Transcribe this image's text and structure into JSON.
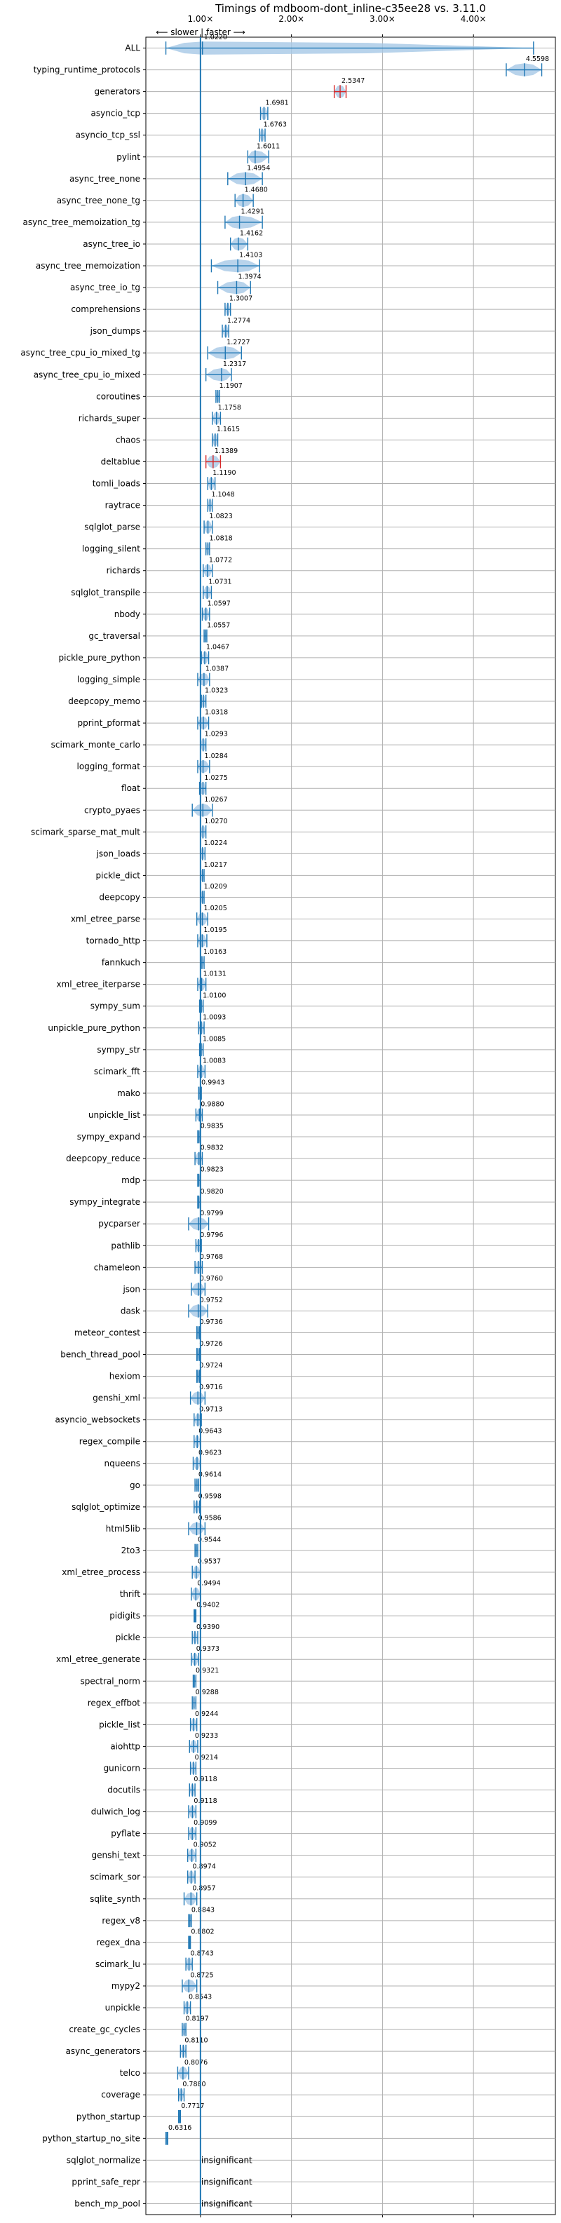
{
  "chart_data": {
    "type": "violin",
    "title": "Timings of mdboom-dont_inline-c35ee28 vs. 3.11.0",
    "direction_label": "⟵ slower | faster ⟶",
    "x_tick_labels": [
      "1.00×",
      "2.00×",
      "3.00×",
      "4.00×"
    ],
    "x_ticks": [
      1,
      2,
      3,
      4
    ],
    "xlim": [
      0.4,
      4.9
    ],
    "grid": true,
    "colors": {
      "violin": "#a6c8e6",
      "line": "#1f77b4",
      "median": "#1f77b4",
      "baseline": "#1f77b4",
      "highlight": "#d62728"
    },
    "insignificant_label": "insignificant",
    "benchmarks": [
      {
        "name": "ALL",
        "value": 1.022,
        "lo": 0.62,
        "hi": 4.66,
        "w": 0.3
      },
      {
        "name": "typing_runtime_protocols",
        "value": 4.5598,
        "lo": 4.36,
        "hi": 4.75,
        "w": 0.3
      },
      {
        "name": "generators",
        "value": 2.5347,
        "lo": 2.47,
        "hi": 2.6,
        "w": 0.3,
        "highlight": true
      },
      {
        "name": "asyncio_tcp",
        "value": 1.6981,
        "lo": 1.66,
        "hi": 1.74,
        "w": 0.3
      },
      {
        "name": "asyncio_tcp_ssl",
        "value": 1.6763,
        "lo": 1.65,
        "hi": 1.71,
        "w": 0.3
      },
      {
        "name": "pylint",
        "value": 1.6011,
        "lo": 1.52,
        "hi": 1.75,
        "w": 0.3
      },
      {
        "name": "async_tree_none",
        "value": 1.4954,
        "lo": 1.3,
        "hi": 1.68,
        "w": 0.3
      },
      {
        "name": "async_tree_none_tg",
        "value": 1.468,
        "lo": 1.38,
        "hi": 1.58,
        "w": 0.3
      },
      {
        "name": "async_tree_memoization_tg",
        "value": 1.4291,
        "lo": 1.27,
        "hi": 1.68,
        "w": 0.3
      },
      {
        "name": "async_tree_io",
        "value": 1.4162,
        "lo": 1.33,
        "hi": 1.52,
        "w": 0.3
      },
      {
        "name": "async_tree_memoization",
        "value": 1.4103,
        "lo": 1.12,
        "hi": 1.65,
        "w": 0.3
      },
      {
        "name": "async_tree_io_tg",
        "value": 1.3974,
        "lo": 1.19,
        "hi": 1.55,
        "w": 0.3
      },
      {
        "name": "comprehensions",
        "value": 1.3007,
        "lo": 1.27,
        "hi": 1.33,
        "w": 0.3
      },
      {
        "name": "json_dumps",
        "value": 1.2774,
        "lo": 1.24,
        "hi": 1.31,
        "w": 0.3
      },
      {
        "name": "async_tree_cpu_io_mixed_tg",
        "value": 1.2727,
        "lo": 1.08,
        "hi": 1.45,
        "w": 0.3
      },
      {
        "name": "async_tree_cpu_io_mixed",
        "value": 1.2317,
        "lo": 1.06,
        "hi": 1.34,
        "w": 0.3
      },
      {
        "name": "coroutines",
        "value": 1.1907,
        "lo": 1.17,
        "hi": 1.21,
        "w": 0.3
      },
      {
        "name": "richards_super",
        "value": 1.1758,
        "lo": 1.13,
        "hi": 1.22,
        "w": 0.3
      },
      {
        "name": "chaos",
        "value": 1.1615,
        "lo": 1.13,
        "hi": 1.19,
        "w": 0.3
      },
      {
        "name": "deltablue",
        "value": 1.1389,
        "lo": 1.06,
        "hi": 1.22,
        "w": 0.3,
        "highlight": true
      },
      {
        "name": "tomli_loads",
        "value": 1.119,
        "lo": 1.08,
        "hi": 1.16,
        "w": 0.3
      },
      {
        "name": "raytrace",
        "value": 1.1048,
        "lo": 1.08,
        "hi": 1.13,
        "w": 0.3
      },
      {
        "name": "sqlglot_parse",
        "value": 1.0823,
        "lo": 1.04,
        "hi": 1.13,
        "w": 0.3
      },
      {
        "name": "logging_silent",
        "value": 1.0818,
        "lo": 1.06,
        "hi": 1.1,
        "w": 0.3
      },
      {
        "name": "richards",
        "value": 1.0772,
        "lo": 1.03,
        "hi": 1.13,
        "w": 0.3
      },
      {
        "name": "sqlglot_transpile",
        "value": 1.0731,
        "lo": 1.03,
        "hi": 1.12,
        "w": 0.3
      },
      {
        "name": "nbody",
        "value": 1.0597,
        "lo": 1.02,
        "hi": 1.1,
        "w": 0.3
      },
      {
        "name": "gc_traversal",
        "value": 1.0557,
        "lo": 1.04,
        "hi": 1.07,
        "w": 0.3
      },
      {
        "name": "pickle_pure_python",
        "value": 1.0467,
        "lo": 1.01,
        "hi": 1.09,
        "w": 0.3
      },
      {
        "name": "logging_simple",
        "value": 1.0387,
        "lo": 0.97,
        "hi": 1.1,
        "w": 0.3
      },
      {
        "name": "deepcopy_memo",
        "value": 1.0323,
        "lo": 1.01,
        "hi": 1.06,
        "w": 0.3
      },
      {
        "name": "pprint_pformat",
        "value": 1.0318,
        "lo": 0.97,
        "hi": 1.09,
        "w": 0.3
      },
      {
        "name": "scimark_monte_carlo",
        "value": 1.0293,
        "lo": 1.0,
        "hi": 1.06,
        "w": 0.3
      },
      {
        "name": "logging_format",
        "value": 1.0284,
        "lo": 0.97,
        "hi": 1.1,
        "w": 0.3
      },
      {
        "name": "float",
        "value": 1.0275,
        "lo": 0.99,
        "hi": 1.06,
        "w": 0.3
      },
      {
        "name": "crypto_pyaes",
        "value": 1.0267,
        "lo": 0.91,
        "hi": 1.13,
        "w": 0.3
      },
      {
        "name": "scimark_sparse_mat_mult",
        "value": 1.027,
        "lo": 1.0,
        "hi": 1.06,
        "w": 0.3
      },
      {
        "name": "json_loads",
        "value": 1.0224,
        "lo": 1.0,
        "hi": 1.05,
        "w": 0.3
      },
      {
        "name": "pickle_dict",
        "value": 1.0217,
        "lo": 1.0,
        "hi": 1.04,
        "w": 0.3
      },
      {
        "name": "deepcopy",
        "value": 1.0209,
        "lo": 1.0,
        "hi": 1.04,
        "w": 0.3
      },
      {
        "name": "xml_etree_parse",
        "value": 1.0205,
        "lo": 0.96,
        "hi": 1.08,
        "w": 0.3
      },
      {
        "name": "tornado_http",
        "value": 1.0195,
        "lo": 0.97,
        "hi": 1.07,
        "w": 0.3
      },
      {
        "name": "fannkuch",
        "value": 1.0163,
        "lo": 1.0,
        "hi": 1.04,
        "w": 0.3
      },
      {
        "name": "xml_etree_iterparse",
        "value": 1.0131,
        "lo": 0.97,
        "hi": 1.06,
        "w": 0.3
      },
      {
        "name": "sympy_sum",
        "value": 1.01,
        "lo": 0.99,
        "hi": 1.03,
        "w": 0.3
      },
      {
        "name": "unpickle_pure_python",
        "value": 1.0093,
        "lo": 0.98,
        "hi": 1.04,
        "w": 0.3
      },
      {
        "name": "sympy_str",
        "value": 1.0085,
        "lo": 0.99,
        "hi": 1.03,
        "w": 0.3
      },
      {
        "name": "scimark_fft",
        "value": 1.0083,
        "lo": 0.97,
        "hi": 1.05,
        "w": 0.3
      },
      {
        "name": "mako",
        "value": 0.9943,
        "lo": 0.98,
        "hi": 1.01,
        "w": 0.3
      },
      {
        "name": "unpickle_list",
        "value": 0.988,
        "lo": 0.95,
        "hi": 1.02,
        "w": 0.3
      },
      {
        "name": "sympy_expand",
        "value": 0.9835,
        "lo": 0.97,
        "hi": 1.0,
        "w": 0.3
      },
      {
        "name": "deepcopy_reduce",
        "value": 0.9832,
        "lo": 0.94,
        "hi": 1.02,
        "w": 0.3
      },
      {
        "name": "mdp",
        "value": 0.9823,
        "lo": 0.97,
        "hi": 1.0,
        "w": 0.3
      },
      {
        "name": "sympy_integrate",
        "value": 0.982,
        "lo": 0.97,
        "hi": 1.0,
        "w": 0.3
      },
      {
        "name": "pycparser",
        "value": 0.9799,
        "lo": 0.87,
        "hi": 1.09,
        "w": 0.3
      },
      {
        "name": "pathlib",
        "value": 0.9796,
        "lo": 0.95,
        "hi": 1.01,
        "w": 0.3
      },
      {
        "name": "chameleon",
        "value": 0.9768,
        "lo": 0.94,
        "hi": 1.02,
        "w": 0.3
      },
      {
        "name": "json",
        "value": 0.976,
        "lo": 0.9,
        "hi": 1.05,
        "w": 0.3
      },
      {
        "name": "dask",
        "value": 0.9752,
        "lo": 0.87,
        "hi": 1.08,
        "w": 0.3
      },
      {
        "name": "meteor_contest",
        "value": 0.9736,
        "lo": 0.96,
        "hi": 0.99,
        "w": 0.3
      },
      {
        "name": "bench_thread_pool",
        "value": 0.9726,
        "lo": 0.96,
        "hi": 0.99,
        "w": 0.3
      },
      {
        "name": "hexiom",
        "value": 0.9724,
        "lo": 0.96,
        "hi": 0.99,
        "w": 0.3
      },
      {
        "name": "genshi_xml",
        "value": 0.9716,
        "lo": 0.89,
        "hi": 1.05,
        "w": 0.3
      },
      {
        "name": "asyncio_websockets",
        "value": 0.9713,
        "lo": 0.93,
        "hi": 1.01,
        "w": 0.3
      },
      {
        "name": "regex_compile",
        "value": 0.9643,
        "lo": 0.93,
        "hi": 1.0,
        "w": 0.3
      },
      {
        "name": "nqueens",
        "value": 0.9623,
        "lo": 0.92,
        "hi": 1.0,
        "w": 0.3
      },
      {
        "name": "go",
        "value": 0.9614,
        "lo": 0.94,
        "hi": 0.98,
        "w": 0.3
      },
      {
        "name": "sqlglot_optimize",
        "value": 0.9598,
        "lo": 0.93,
        "hi": 0.99,
        "w": 0.3
      },
      {
        "name": "html5lib",
        "value": 0.9586,
        "lo": 0.87,
        "hi": 1.05,
        "w": 0.3
      },
      {
        "name": "2to3",
        "value": 0.9544,
        "lo": 0.94,
        "hi": 0.97,
        "w": 0.3
      },
      {
        "name": "xml_etree_process",
        "value": 0.9537,
        "lo": 0.91,
        "hi": 1.0,
        "w": 0.3
      },
      {
        "name": "thrift",
        "value": 0.9494,
        "lo": 0.9,
        "hi": 1.0,
        "w": 0.3
      },
      {
        "name": "pidigits",
        "value": 0.9402,
        "lo": 0.93,
        "hi": 0.95,
        "w": 0.3
      },
      {
        "name": "pickle",
        "value": 0.939,
        "lo": 0.91,
        "hi": 0.97,
        "w": 0.3
      },
      {
        "name": "xml_etree_generate",
        "value": 0.9373,
        "lo": 0.9,
        "hi": 0.98,
        "w": 0.3
      },
      {
        "name": "spectral_norm",
        "value": 0.9321,
        "lo": 0.92,
        "hi": 0.95,
        "w": 0.3
      },
      {
        "name": "regex_effbot",
        "value": 0.9288,
        "lo": 0.91,
        "hi": 0.95,
        "w": 0.3
      },
      {
        "name": "pickle_list",
        "value": 0.9244,
        "lo": 0.89,
        "hi": 0.96,
        "w": 0.3
      },
      {
        "name": "aiohttp",
        "value": 0.9233,
        "lo": 0.88,
        "hi": 0.97,
        "w": 0.3
      },
      {
        "name": "gunicorn",
        "value": 0.9214,
        "lo": 0.89,
        "hi": 0.95,
        "w": 0.3
      },
      {
        "name": "docutils",
        "value": 0.9118,
        "lo": 0.88,
        "hi": 0.94,
        "w": 0.3
      },
      {
        "name": "dulwich_log",
        "value": 0.9118,
        "lo": 0.87,
        "hi": 0.95,
        "w": 0.3
      },
      {
        "name": "pyflate",
        "value": 0.9099,
        "lo": 0.87,
        "hi": 0.95,
        "w": 0.3
      },
      {
        "name": "genshi_text",
        "value": 0.9052,
        "lo": 0.86,
        "hi": 0.95,
        "w": 0.3
      },
      {
        "name": "scimark_sor",
        "value": 0.8974,
        "lo": 0.86,
        "hi": 0.94,
        "w": 0.3
      },
      {
        "name": "sqlite_synth",
        "value": 0.8957,
        "lo": 0.82,
        "hi": 0.96,
        "w": 0.3
      },
      {
        "name": "regex_v8",
        "value": 0.8843,
        "lo": 0.87,
        "hi": 0.9,
        "w": 0.3
      },
      {
        "name": "regex_dna",
        "value": 0.8802,
        "lo": 0.87,
        "hi": 0.89,
        "w": 0.3
      },
      {
        "name": "scimark_lu",
        "value": 0.8743,
        "lo": 0.84,
        "hi": 0.91,
        "w": 0.3
      },
      {
        "name": "mypy2",
        "value": 0.8725,
        "lo": 0.8,
        "hi": 0.96,
        "w": 0.3
      },
      {
        "name": "unpickle",
        "value": 0.8543,
        "lo": 0.82,
        "hi": 0.89,
        "w": 0.3
      },
      {
        "name": "create_gc_cycles",
        "value": 0.8197,
        "lo": 0.8,
        "hi": 0.84,
        "w": 0.3
      },
      {
        "name": "async_generators",
        "value": 0.811,
        "lo": 0.78,
        "hi": 0.84,
        "w": 0.3
      },
      {
        "name": "telco",
        "value": 0.8076,
        "lo": 0.75,
        "hi": 0.87,
        "w": 0.3
      },
      {
        "name": "coverage",
        "value": 0.788,
        "lo": 0.76,
        "hi": 0.82,
        "w": 0.3
      },
      {
        "name": "python_startup",
        "value": 0.7717,
        "lo": 0.76,
        "hi": 0.78,
        "w": 0.3
      },
      {
        "name": "python_startup_no_site",
        "value": 0.6316,
        "lo": 0.62,
        "hi": 0.64,
        "w": 0.3
      },
      {
        "name": "sqlglot_normalize",
        "insignificant": true
      },
      {
        "name": "pprint_safe_repr",
        "insignificant": true
      },
      {
        "name": "bench_mp_pool",
        "insignificant": true
      }
    ]
  }
}
